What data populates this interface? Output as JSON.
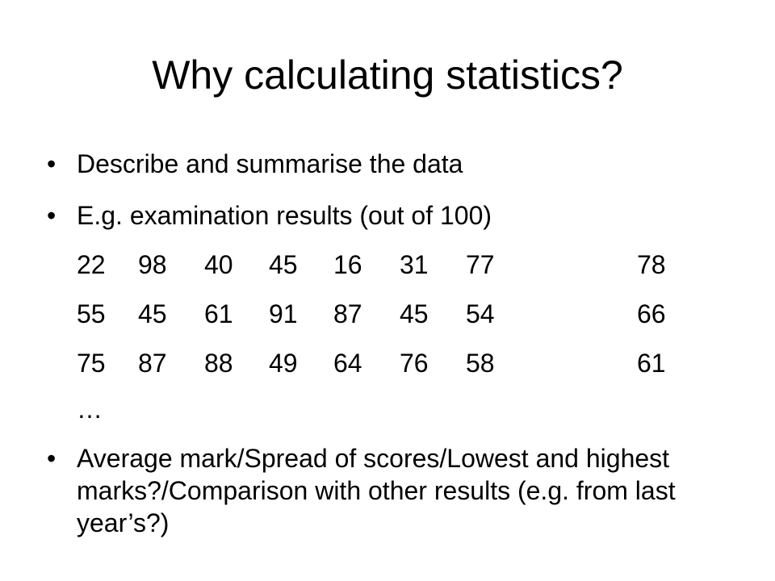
{
  "slide": {
    "title": "Why calculating statistics?",
    "bullet_char": "•",
    "bullets": [
      "Describe and summarise the data",
      "E.g. examination results (out of 100)",
      "Average mark/Spread of scores/Lowest and highest marks?/Comparison with other results (e.g. from last year’s?)"
    ],
    "marks": [
      [
        "22",
        "98",
        "40",
        "45",
        "16",
        "31",
        "77",
        "78"
      ],
      [
        "55",
        "45",
        "61",
        "91",
        "87",
        "45",
        "54",
        "66"
      ],
      [
        "75",
        "87",
        "88",
        "49",
        "64",
        "76",
        "58",
        "61"
      ]
    ],
    "ellipsis": "…"
  }
}
